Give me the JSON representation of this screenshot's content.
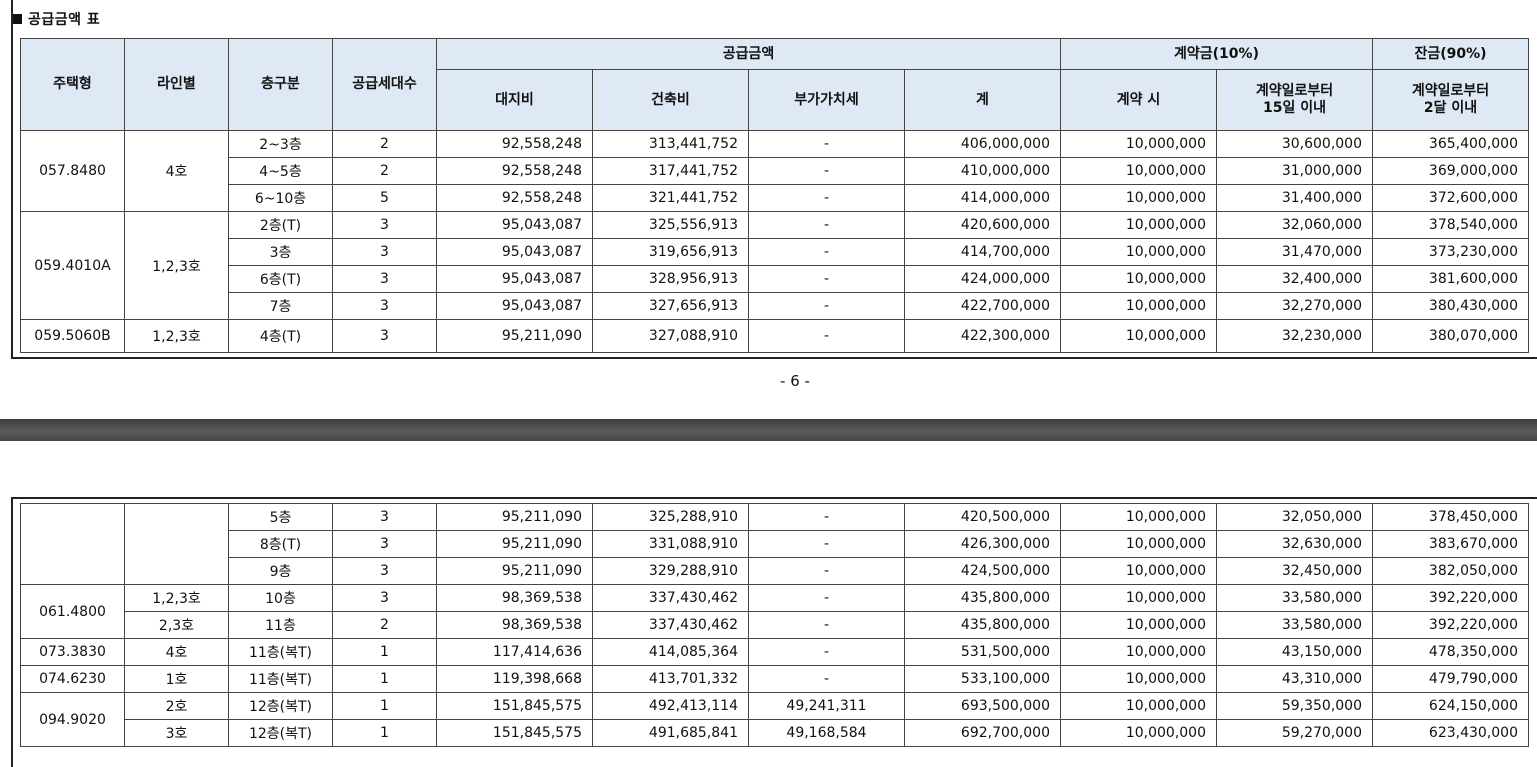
{
  "section_title": "공급금액 표",
  "headers": {
    "unit_type": "주택형",
    "line": "라인별",
    "floor": "층구분",
    "households": "공급세대수",
    "supply_amount": "공급금액",
    "land_cost": "대지비",
    "building_cost": "건축비",
    "vat": "부가가치세",
    "total": "계",
    "deposit": "계약금(10%)",
    "deposit_at_contract": "계약 시",
    "deposit_within_15_days": "계약일로부터\n15일 이내",
    "balance": "잔금(90%)",
    "balance_within_2_months": "계약일로부터\n2달 이내"
  },
  "page_number": "- 6 -",
  "top_rows": [
    {
      "type": "057.8480",
      "line": "4호",
      "floor": "2~3층",
      "households": "2",
      "land": "92,558,248",
      "building": "313,441,752",
      "vat": "-",
      "total": "406,000,000",
      "deposit1": "10,000,000",
      "deposit2": "30,600,000",
      "balance": "365,400,000"
    },
    {
      "type": "",
      "line": "",
      "floor": "4~5층",
      "households": "2",
      "land": "92,558,248",
      "building": "317,441,752",
      "vat": "-",
      "total": "410,000,000",
      "deposit1": "10,000,000",
      "deposit2": "31,000,000",
      "balance": "369,000,000"
    },
    {
      "type": "",
      "line": "",
      "floor": "6~10층",
      "households": "5",
      "land": "92,558,248",
      "building": "321,441,752",
      "vat": "-",
      "total": "414,000,000",
      "deposit1": "10,000,000",
      "deposit2": "31,400,000",
      "balance": "372,600,000"
    },
    {
      "type": "059.4010A",
      "line": "1,2,3호",
      "floor": "2층(T)",
      "households": "3",
      "land": "95,043,087",
      "building": "325,556,913",
      "vat": "-",
      "total": "420,600,000",
      "deposit1": "10,000,000",
      "deposit2": "32,060,000",
      "balance": "378,540,000"
    },
    {
      "type": "",
      "line": "",
      "floor": "3층",
      "households": "3",
      "land": "95,043,087",
      "building": "319,656,913",
      "vat": "-",
      "total": "414,700,000",
      "deposit1": "10,000,000",
      "deposit2": "31,470,000",
      "balance": "373,230,000"
    },
    {
      "type": "",
      "line": "",
      "floor": "6층(T)",
      "households": "3",
      "land": "95,043,087",
      "building": "328,956,913",
      "vat": "-",
      "total": "424,000,000",
      "deposit1": "10,000,000",
      "deposit2": "32,400,000",
      "balance": "381,600,000"
    },
    {
      "type": "",
      "line": "",
      "floor": "7층",
      "households": "3",
      "land": "95,043,087",
      "building": "327,656,913",
      "vat": "-",
      "total": "422,700,000",
      "deposit1": "10,000,000",
      "deposit2": "32,270,000",
      "balance": "380,430,000"
    },
    {
      "type": "059.5060B",
      "line": "1,2,3호",
      "floor": "4층(T)",
      "households": "3",
      "land": "95,211,090",
      "building": "327,088,910",
      "vat": "-",
      "total": "422,300,000",
      "deposit1": "10,000,000",
      "deposit2": "32,230,000",
      "balance": "380,070,000"
    }
  ],
  "bottom_rows": [
    {
      "type": "",
      "line": "",
      "floor": "5층",
      "households": "3",
      "land": "95,211,090",
      "building": "325,288,910",
      "vat": "-",
      "total": "420,500,000",
      "deposit1": "10,000,000",
      "deposit2": "32,050,000",
      "balance": "378,450,000"
    },
    {
      "type": "",
      "line": "",
      "floor": "8층(T)",
      "households": "3",
      "land": "95,211,090",
      "building": "331,088,910",
      "vat": "-",
      "total": "426,300,000",
      "deposit1": "10,000,000",
      "deposit2": "32,630,000",
      "balance": "383,670,000"
    },
    {
      "type": "",
      "line": "",
      "floor": "9층",
      "households": "3",
      "land": "95,211,090",
      "building": "329,288,910",
      "vat": "-",
      "total": "424,500,000",
      "deposit1": "10,000,000",
      "deposit2": "32,450,000",
      "balance": "382,050,000"
    },
    {
      "type": "061.4800",
      "line": "1,2,3호",
      "floor": "10층",
      "households": "3",
      "land": "98,369,538",
      "building": "337,430,462",
      "vat": "-",
      "total": "435,800,000",
      "deposit1": "10,000,000",
      "deposit2": "33,580,000",
      "balance": "392,220,000"
    },
    {
      "type": "",
      "line": "2,3호",
      "floor": "11층",
      "households": "2",
      "land": "98,369,538",
      "building": "337,430,462",
      "vat": "-",
      "total": "435,800,000",
      "deposit1": "10,000,000",
      "deposit2": "33,580,000",
      "balance": "392,220,000"
    },
    {
      "type": "073.3830",
      "line": "4호",
      "floor": "11층(복T)",
      "households": "1",
      "land": "117,414,636",
      "building": "414,085,364",
      "vat": "-",
      "total": "531,500,000",
      "deposit1": "10,000,000",
      "deposit2": "43,150,000",
      "balance": "478,350,000"
    },
    {
      "type": "074.6230",
      "line": "1호",
      "floor": "11층(복T)",
      "households": "1",
      "land": "119,398,668",
      "building": "413,701,332",
      "vat": "-",
      "total": "533,100,000",
      "deposit1": "10,000,000",
      "deposit2": "43,310,000",
      "balance": "479,790,000"
    },
    {
      "type": "094.9020",
      "line": "2호",
      "floor": "12층(복T)",
      "households": "1",
      "land": "151,845,575",
      "building": "492,413,114",
      "vat": "49,241,311",
      "total": "693,500,000",
      "deposit1": "10,000,000",
      "deposit2": "59,350,000",
      "balance": "624,150,000"
    },
    {
      "type": "",
      "line": "3호",
      "floor": "12층(복T)",
      "households": "1",
      "land": "151,845,575",
      "building": "491,685,841",
      "vat": "49,168,584",
      "total": "692,700,000",
      "deposit1": "10,000,000",
      "deposit2": "59,270,000",
      "balance": "623,430,000"
    }
  ]
}
